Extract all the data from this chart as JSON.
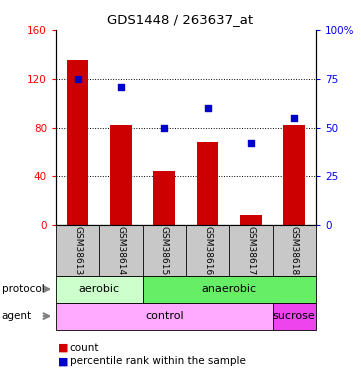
{
  "title": "GDS1448 / 263637_at",
  "samples": [
    "GSM38613",
    "GSM38614",
    "GSM38615",
    "GSM38616",
    "GSM38617",
    "GSM38618"
  ],
  "counts": [
    135,
    82,
    44,
    68,
    8,
    82
  ],
  "percentile_ranks": [
    75,
    71,
    50,
    60,
    42,
    55
  ],
  "left_ylim": [
    0,
    160
  ],
  "right_ylim": [
    0,
    100
  ],
  "left_yticks": [
    0,
    40,
    80,
    120,
    160
  ],
  "right_yticks": [
    0,
    25,
    50,
    75,
    100
  ],
  "right_yticklabels": [
    "0",
    "25",
    "50",
    "75",
    "100%"
  ],
  "bar_color": "#cc0000",
  "dot_color": "#0000cc",
  "protocol_labels": [
    [
      "aerobic",
      0,
      2
    ],
    [
      "anaerobic",
      2,
      6
    ]
  ],
  "agent_labels": [
    [
      "control",
      0,
      5
    ],
    [
      "sucrose",
      5,
      6
    ]
  ],
  "protocol_colors": [
    "#ccffcc",
    "#66ee66"
  ],
  "agent_colors": [
    "#ffaaff",
    "#ee44ee"
  ],
  "label_count": "count",
  "label_percentile": "percentile rank within the sample",
  "bg_color": "#ffffff",
  "tick_area_color": "#c8c8c8"
}
